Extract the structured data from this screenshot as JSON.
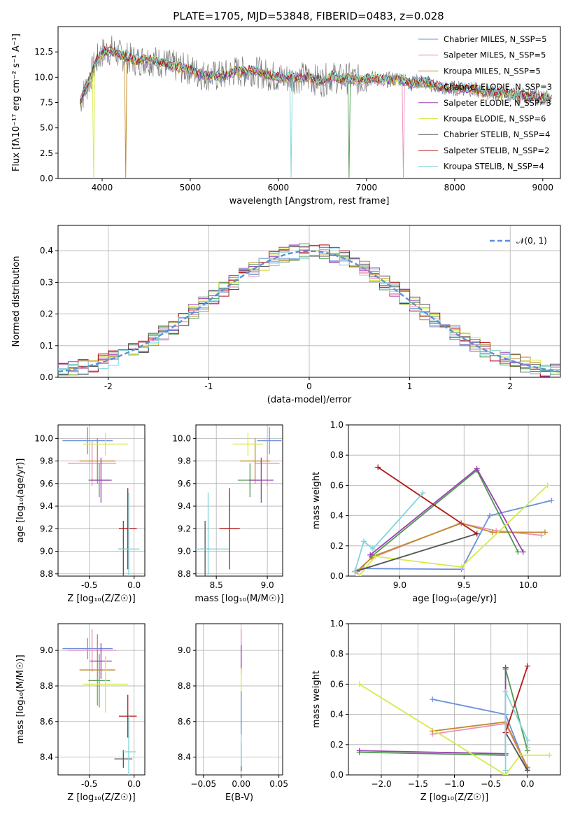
{
  "figure_title": "PLATE=1705, MJD=53848, FIBERID=0483, z=0.028",
  "series": [
    {
      "name": "Chabrier MILES, N_SSP=5",
      "color": "#6a8fdc"
    },
    {
      "name": "Salpeter MILES, N_SSP=5",
      "color": "#ea8fb8"
    },
    {
      "name": "Kroupa MILES, N_SSP=5",
      "color": "#c08a2a"
    },
    {
      "name": "Chabrier ELODIE, N_SSP=3",
      "color": "#4e9a4e"
    },
    {
      "name": "Salpeter ELODIE, N_SSP=3",
      "color": "#9b3fb5"
    },
    {
      "name": "Kroupa ELODIE, N_SSP=6",
      "color": "#d6ea4a"
    },
    {
      "name": "Chabrier STELIB, N_SSP=4",
      "color": "#555555"
    },
    {
      "name": "Salpeter STELIB, N_SSP=2",
      "color": "#b01818"
    },
    {
      "name": "Kroupa STELIB, N_SSP=4",
      "color": "#7fd6dc"
    }
  ],
  "chart_data": [
    {
      "id": "spectrum",
      "type": "line",
      "xlabel": "wavelength [Angstrom, rest frame]",
      "ylabel": "Flux [fλ10⁻¹⁷ erg cm⁻² s⁻¹ A⁻¹]",
      "xlim": [
        3500,
        9200
      ],
      "ylim": [
        0,
        15
      ],
      "xticks": [
        4000,
        5000,
        6000,
        7000,
        8000,
        9000
      ],
      "yticks": [
        0.0,
        2.5,
        5.0,
        7.5,
        10.0,
        12.5
      ],
      "x": [
        3750,
        3800,
        3850,
        3900,
        3950,
        4000,
        4100,
        4200,
        4300,
        4400,
        4500,
        4600,
        4700,
        4800,
        4900,
        5000,
        5100,
        5200,
        5300,
        5400,
        5500,
        5600,
        5700,
        5800,
        5900,
        6000,
        6100,
        6200,
        6300,
        6400,
        6500,
        6600,
        6700,
        6800,
        6900,
        7000,
        7100,
        7200,
        7300,
        7400,
        7500,
        7600,
        7700,
        7800,
        7900,
        8000,
        8100,
        8200,
        8300,
        8400,
        8500,
        8600,
        8700,
        8800,
        8900,
        9000,
        9100
      ],
      "y": [
        7.6,
        8.6,
        9.6,
        10.9,
        11.8,
        12.4,
        12.7,
        12.2,
        11.9,
        11.6,
        11.8,
        11.6,
        11.4,
        11.1,
        10.9,
        10.8,
        10.3,
        10.2,
        10.1,
        10.2,
        10.6,
        10.5,
        10.7,
        10.4,
        10.2,
        10.0,
        9.9,
        9.9,
        10.0,
        9.8,
        9.6,
        10.1,
        9.8,
        9.9,
        9.7,
        9.8,
        9.9,
        9.7,
        9.8,
        9.8,
        9.4,
        9.6,
        9.4,
        9.1,
        8.9,
        8.9,
        8.9,
        8.8,
        8.6,
        8.5,
        8.4,
        8.4,
        8.2,
        8.2,
        8.1,
        8.0,
        7.9
      ],
      "legend": "upper right",
      "grid": false
    },
    {
      "id": "residuals",
      "type": "bar",
      "xlabel": "(data-model)/error",
      "ylabel": "Normed distribution",
      "xlim": [
        -2.5,
        2.5
      ],
      "ylim": [
        0,
        0.48
      ],
      "xticks": [
        -2,
        -1,
        0,
        1,
        2
      ],
      "yticks": [
        0.0,
        0.1,
        0.2,
        0.3,
        0.4
      ],
      "bin_width": 0.1,
      "bin_centers": [
        -2.45,
        -2.35,
        -2.25,
        -2.15,
        -2.05,
        -1.95,
        -1.85,
        -1.75,
        -1.65,
        -1.55,
        -1.45,
        -1.35,
        -1.25,
        -1.15,
        -1.05,
        -0.95,
        -0.85,
        -0.75,
        -0.65,
        -0.55,
        -0.45,
        -0.35,
        -0.25,
        -0.15,
        -0.05,
        0.05,
        0.15,
        0.25,
        0.35,
        0.45,
        0.55,
        0.65,
        0.75,
        0.85,
        0.95,
        1.05,
        1.15,
        1.25,
        1.35,
        1.45,
        1.55,
        1.65,
        1.75,
        1.85,
        1.95,
        2.05,
        2.15,
        2.25,
        2.35,
        2.45
      ],
      "reference_label": "𝒩(0, 1)",
      "legend": "upper right",
      "grid": true
    },
    {
      "id": "age_vs_Z",
      "type": "scatter",
      "xlabel": "Z [log₁₀(Z/Z☉)]",
      "ylabel": "age  [log₁₀(age/yr)]",
      "xlim": [
        -0.85,
        0.12
      ],
      "ylim": [
        8.78,
        10.12
      ],
      "xticks": [
        "-0.5",
        "0.0"
      ],
      "yticks": [
        "8.8",
        "9.0",
        "9.2",
        "9.4",
        "9.6",
        "9.8",
        "10.0"
      ],
      "points": [
        {
          "s": 0,
          "x": -0.52,
          "y": 9.98,
          "xe": 0.28,
          "ye": 0.12
        },
        {
          "s": 1,
          "x": -0.47,
          "y": 9.78,
          "xe": 0.27,
          "ye": 0.2
        },
        {
          "s": 2,
          "x": -0.41,
          "y": 9.8,
          "xe": 0.2,
          "ye": 0.2
        },
        {
          "s": 3,
          "x": -0.39,
          "y": 9.63,
          "xe": 0.12,
          "ye": 0.15
        },
        {
          "s": 4,
          "x": -0.37,
          "y": 9.63,
          "xe": 0.12,
          "ye": 0.2
        },
        {
          "s": 5,
          "x": -0.32,
          "y": 9.95,
          "xe": 0.25,
          "ye": 0.1
        },
        {
          "s": 6,
          "x": -0.12,
          "y": 9.02,
          "xe": 0.05,
          "ye": 0.25
        },
        {
          "s": 7,
          "x": -0.07,
          "y": 9.2,
          "xe": 0.1,
          "ye": 0.36
        },
        {
          "s": 8,
          "x": -0.06,
          "y": 9.02,
          "xe": 0.12,
          "ye": 0.5
        }
      ]
    },
    {
      "id": "age_vs_mass",
      "type": "scatter",
      "xlabel": "mass [log₁₀(M/M☉)]",
      "ylabel": "",
      "xlim": [
        8.3,
        9.15
      ],
      "ylim": [
        8.78,
        10.12
      ],
      "xticks": [
        "8.5",
        "9.0"
      ],
      "yticks": [
        "8.8",
        "9.0",
        "9.2",
        "9.4",
        "9.6",
        "9.8",
        "10.0"
      ],
      "points": [
        {
          "s": 0,
          "x": 9.02,
          "y": 9.98,
          "xe": 0.12,
          "ye": 0.12
        },
        {
          "s": 1,
          "x": 9.0,
          "y": 9.78,
          "xe": 0.12,
          "ye": 0.2
        },
        {
          "s": 2,
          "x": 8.88,
          "y": 9.8,
          "xe": 0.15,
          "ye": 0.2
        },
        {
          "s": 3,
          "x": 8.83,
          "y": 9.63,
          "xe": 0.12,
          "ye": 0.15
        },
        {
          "s": 4,
          "x": 8.94,
          "y": 9.63,
          "xe": 0.12,
          "ye": 0.2
        },
        {
          "s": 5,
          "x": 8.81,
          "y": 9.95,
          "xe": 0.15,
          "ye": 0.1
        },
        {
          "s": 6,
          "x": 8.39,
          "y": 9.02,
          "xe": 0.05,
          "ye": 0.25
        },
        {
          "s": 7,
          "x": 8.63,
          "y": 9.2,
          "xe": 0.1,
          "ye": 0.36
        },
        {
          "s": 8,
          "x": 8.42,
          "y": 9.02,
          "xe": 0.2,
          "ye": 0.5
        }
      ]
    },
    {
      "id": "weight_vs_age",
      "type": "line",
      "xlabel": "age  [log₁₀(age/yr)]",
      "ylabel": "mass weight",
      "xlim": [
        8.6,
        10.25
      ],
      "ylim": [
        0,
        1
      ],
      "xticks": [
        "9.0",
        "9.5",
        "10.0"
      ],
      "yticks": [
        "0.0",
        "0.2",
        "0.4",
        "0.6",
        "0.8",
        "1.0"
      ],
      "lines": [
        {
          "s": 0,
          "x": [
            8.65,
            8.72,
            9.48,
            9.7,
            10.18
          ],
          "y": [
            0.03,
            0.05,
            0.045,
            0.4,
            0.5
          ]
        },
        {
          "s": 1,
          "x": [
            8.66,
            8.78,
            9.47,
            9.75,
            10.1
          ],
          "y": [
            0.03,
            0.12,
            0.35,
            0.3,
            0.27
          ]
        },
        {
          "s": 2,
          "x": [
            8.67,
            8.79,
            9.48,
            9.72,
            10.13
          ],
          "y": [
            0.03,
            0.13,
            0.35,
            0.29,
            0.29
          ]
        },
        {
          "s": 3,
          "x": [
            8.78,
            9.6,
            9.92
          ],
          "y": [
            0.13,
            0.7,
            0.16
          ]
        },
        {
          "s": 4,
          "x": [
            8.77,
            9.6,
            9.96
          ],
          "y": [
            0.14,
            0.71,
            0.16
          ]
        },
        {
          "s": 5,
          "x": [
            8.68,
            8.81,
            9.48,
            10.15
          ],
          "y": [
            0.0,
            0.13,
            0.06,
            0.6
          ]
        },
        {
          "s": 6,
          "x": [
            8.65,
            9.6
          ],
          "y": [
            0.03,
            0.28
          ]
        },
        {
          "s": 7,
          "x": [
            8.83,
            9.6
          ],
          "y": [
            0.72,
            0.28
          ]
        },
        {
          "s": 8,
          "x": [
            8.65,
            8.72,
            8.79,
            9.18
          ],
          "y": [
            0.03,
            0.23,
            0.18,
            0.55
          ]
        }
      ]
    },
    {
      "id": "mass_vs_Z",
      "type": "scatter",
      "xlabel": "Z [log₁₀(Z/Z☉)]",
      "ylabel": "mass [log₁₀(M/M☉)]",
      "xlim": [
        -0.85,
        0.12
      ],
      "ylim": [
        8.3,
        9.15
      ],
      "xticks": [
        "-0.5",
        "0.0"
      ],
      "yticks": [
        "8.4",
        "8.6",
        "8.8",
        "9.0"
      ],
      "points": [
        {
          "s": 0,
          "x": -0.52,
          "y": 9.01,
          "xe": 0.28,
          "ye": 0.06
        },
        {
          "s": 1,
          "x": -0.47,
          "y": 9.0,
          "xe": 0.27,
          "ye": 0.12
        },
        {
          "s": 2,
          "x": -0.41,
          "y": 8.89,
          "xe": 0.2,
          "ye": 0.2
        },
        {
          "s": 3,
          "x": -0.39,
          "y": 8.83,
          "xe": 0.12,
          "ye": 0.15
        },
        {
          "s": 4,
          "x": -0.37,
          "y": 8.94,
          "xe": 0.12,
          "ye": 0.1
        },
        {
          "s": 5,
          "x": -0.32,
          "y": 8.81,
          "xe": 0.25,
          "ye": 0.16
        },
        {
          "s": 6,
          "x": -0.12,
          "y": 8.39,
          "xe": 0.1,
          "ye": 0.05
        },
        {
          "s": 7,
          "x": -0.07,
          "y": 8.63,
          "xe": 0.1,
          "ye": 0.12
        },
        {
          "s": 8,
          "x": -0.06,
          "y": 8.43,
          "xe": 0.08,
          "ye": 0.2
        }
      ]
    },
    {
      "id": "mass_vs_ebv",
      "type": "scatter",
      "xlabel": "E(B-V)",
      "ylabel": "",
      "xlim": [
        -0.06,
        0.055
      ],
      "ylim": [
        8.3,
        9.15
      ],
      "xticks": [
        "−0.05",
        "0.00",
        "0.05"
      ],
      "yticks": [
        "8.4",
        "8.6",
        "8.8",
        "9.0"
      ],
      "points": [
        {
          "s": 1,
          "x": 0.0,
          "y": 9.0,
          "ye": 0.12
        },
        {
          "s": 4,
          "x": 0.0,
          "y": 8.95,
          "ye": 0.08
        },
        {
          "s": 5,
          "x": 0.0,
          "y": 8.78,
          "ye": 0.12
        },
        {
          "s": 6,
          "x": 0.0,
          "y": 8.4,
          "ye": 0.08
        },
        {
          "s": 8,
          "x": 0.0,
          "y": 8.55,
          "ye": 0.2
        },
        {
          "s": 0,
          "x": 0.0,
          "y": 8.65,
          "ye": 0.12
        }
      ]
    },
    {
      "id": "weight_vs_Z",
      "type": "line",
      "xlabel": "Z [log₁₀(Z/Z☉)]",
      "ylabel": "mass weight",
      "xlim": [
        -2.45,
        0.45
      ],
      "ylim": [
        0,
        1
      ],
      "xticks": [
        "−2.0",
        "−1.5",
        "−1.0",
        "−0.5",
        "0.0"
      ],
      "yticks": [
        "0.0",
        "0.2",
        "0.4",
        "0.6",
        "0.8",
        "1.0"
      ],
      "lines": [
        {
          "s": 0,
          "x": [
            -1.3,
            -0.3,
            0.0
          ],
          "y": [
            0.5,
            0.4,
            0.03
          ]
        },
        {
          "s": 1,
          "x": [
            -1.3,
            -0.3,
            0.0
          ],
          "y": [
            0.27,
            0.34,
            0.04
          ]
        },
        {
          "s": 2,
          "x": [
            -1.3,
            -0.3,
            0.0
          ],
          "y": [
            0.29,
            0.35,
            0.05
          ]
        },
        {
          "s": 3,
          "x": [
            -2.3,
            -0.3,
            -0.3,
            0.0
          ],
          "y": [
            0.15,
            0.13,
            0.7,
            0.16
          ]
        },
        {
          "s": 4,
          "x": [
            -2.3,
            -0.3,
            -0.3
          ],
          "y": [
            0.16,
            0.14,
            0.71
          ]
        },
        {
          "s": 5,
          "x": [
            -2.3,
            -0.3,
            -0.1,
            0.3
          ],
          "y": [
            0.6,
            0.0,
            0.13,
            0.13
          ]
        },
        {
          "s": 6,
          "x": [
            -0.3,
            0.0
          ],
          "y": [
            0.28,
            0.03
          ]
        },
        {
          "s": 7,
          "x": [
            -0.3,
            0.0
          ],
          "y": [
            0.28,
            0.72
          ]
        },
        {
          "s": 8,
          "x": [
            -0.3,
            -0.3,
            0.0,
            0.0
          ],
          "y": [
            0.03,
            0.55,
            0.23,
            0.18
          ]
        }
      ]
    }
  ]
}
